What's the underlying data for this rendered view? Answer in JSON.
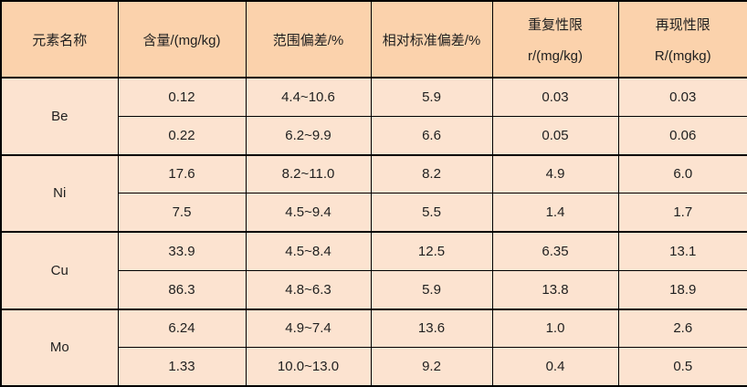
{
  "colors": {
    "header_bg": "#fbd2ac",
    "body_bg": "#fce3d0",
    "border": "#000000",
    "text": "#1f1f1f"
  },
  "chart_data": {
    "type": "table",
    "headers": {
      "element": "元素名称",
      "content": "含量/(mg/kg)",
      "range_deviation": "范围偏差/%",
      "relative_std_deviation": "相对标准偏差/%",
      "repeatability_line1": "重复性限",
      "repeatability_line2": "r/(mg/kg)",
      "reproducibility_line1": "再现性限",
      "reproducibility_line2": "R/(mgkg)"
    },
    "groups": [
      {
        "element": "Be",
        "rows": [
          [
            "0.12",
            "4.4~10.6",
            "5.9",
            "0.03",
            "0.03"
          ],
          [
            "0.22",
            "6.2~9.9",
            "6.6",
            "0.05",
            "0.06"
          ]
        ]
      },
      {
        "element": "Ni",
        "rows": [
          [
            "17.6",
            "8.2~11.0",
            "8.2",
            "4.9",
            "6.0"
          ],
          [
            "7.5",
            "4.5~9.4",
            "5.5",
            "1.4",
            "1.7"
          ]
        ]
      },
      {
        "element": "Cu",
        "rows": [
          [
            "33.9",
            "4.5~8.4",
            "12.5",
            "6.35",
            "13.1"
          ],
          [
            "86.3",
            "4.8~6.3",
            "5.9",
            "13.8",
            "18.9"
          ]
        ]
      },
      {
        "element": "Mo",
        "rows": [
          [
            "6.24",
            "4.9~7.4",
            "13.6",
            "1.0",
            "2.6"
          ],
          [
            "1.33",
            "10.0~13.0",
            "9.2",
            "0.4",
            "0.5"
          ]
        ]
      }
    ]
  }
}
